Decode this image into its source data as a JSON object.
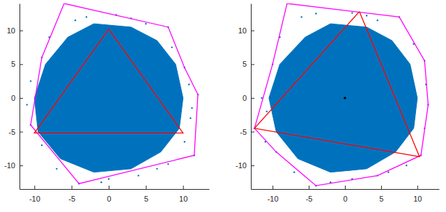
{
  "chart_data": [
    {
      "type": "scatter",
      "xlim": [
        -12,
        13.5
      ],
      "ylim": [
        -13.5,
        14
      ],
      "xticks": [
        -10,
        -5,
        0,
        5,
        10
      ],
      "yticks": [
        -10,
        -5,
        0,
        5,
        10
      ],
      "series": [
        {
          "type": "polygon",
          "color": "#0072bd",
          "x": [
            -2,
            3,
            6.5,
            9,
            10,
            9.5,
            7,
            3,
            -2,
            -6.5,
            -9.5,
            -10,
            -8.5,
            -5.5
          ],
          "values": [
            11,
            10.5,
            8.5,
            5,
            0,
            -4.5,
            -8,
            -10.5,
            -11,
            -9,
            -5,
            0,
            5,
            9
          ]
        },
        {
          "type": "scatter",
          "color": "#0072bd",
          "marker": "dot",
          "x": [
            -6,
            8,
            10.2,
            12,
            11.5,
            -4,
            -10.5,
            -9,
            -3,
            1,
            5,
            8.5,
            10.8,
            11,
            10.2,
            8,
            4,
            0,
            -7,
            -9,
            -11,
            -10.5,
            -8,
            -4.5,
            3,
            -1,
            6.5,
            11.2
          ],
          "values": [
            14,
            10.5,
            4.5,
            0.5,
            -8.5,
            -12.7,
            -4,
            6,
            12,
            12.3,
            11,
            7.5,
            2,
            -3,
            -6.5,
            -9.8,
            -11.5,
            -12,
            -10.5,
            -7,
            -1,
            2.5,
            9,
            11.5,
            11.8,
            -12.5,
            -10.5,
            -1.5
          ]
        },
        {
          "type": "line",
          "color": "#ff00ff",
          "x": [
            -6,
            8,
            10.2,
            12,
            11.5,
            -4,
            -10.5,
            -9,
            -6
          ],
          "values": [
            14,
            10.5,
            4.5,
            0.5,
            -8.5,
            -12.7,
            -4,
            6,
            14
          ]
        },
        {
          "type": "line",
          "color": "#ff0000",
          "x": [
            0,
            10,
            -10,
            0
          ],
          "values": [
            10.2,
            -5.2,
            -5.2,
            10.2
          ]
        }
      ]
    },
    {
      "type": "scatter",
      "xlim": [
        -13,
        13
      ],
      "ylim": [
        -13.5,
        14
      ],
      "xticks": [
        -10,
        -5,
        0,
        5,
        10
      ],
      "yticks": [
        -10,
        -5,
        0,
        5,
        10
      ],
      "series": [
        {
          "type": "polygon",
          "color": "#0072bd",
          "x": [
            -2,
            3,
            6.5,
            9,
            10,
            9.5,
            7,
            3,
            -2,
            -6.5,
            -9.5,
            -10.5,
            -9,
            -5.5
          ],
          "values": [
            11,
            10.5,
            8.5,
            5,
            0,
            -4.5,
            -8,
            -10.5,
            -11,
            -9,
            -5,
            0,
            5,
            9
          ]
        },
        {
          "type": "scatter",
          "color": "#0072bd",
          "marker": "dot",
          "x": [
            -8,
            7.5,
            11,
            11.5,
            10.5,
            4.5,
            -4,
            -9.5,
            -12.5,
            -10,
            -4,
            1,
            4.5,
            9.5,
            11.2,
            11,
            8.5,
            1,
            -2,
            -7,
            -11,
            -11.5,
            -9,
            -6,
            3,
            6,
            -10.8
          ],
          "values": [
            14,
            12,
            5.5,
            -1,
            -8.5,
            -11.5,
            -13,
            -8,
            -4.5,
            5,
            12.5,
            12.6,
            11.5,
            8,
            2,
            -4.5,
            -10,
            -12,
            -12.5,
            -11,
            -6.5,
            0,
            9,
            12,
            12.2,
            -11,
            -2
          ]
        },
        {
          "type": "line",
          "color": "#ff00ff",
          "x": [
            -8,
            7.5,
            11,
            11.5,
            10.5,
            4.5,
            -4,
            -9.5,
            -12.5,
            -10,
            -8
          ],
          "values": [
            14,
            12,
            5.5,
            -1,
            -8.5,
            -11.5,
            -13,
            -8,
            -4.5,
            5,
            14
          ]
        },
        {
          "type": "line",
          "color": "#ff0000",
          "x": [
            2,
            10.3,
            -12.5,
            2
          ],
          "values": [
            12.8,
            -8.7,
            -4.5,
            12.8
          ]
        },
        {
          "type": "scatter",
          "color": "#000000",
          "marker": "dot",
          "x": [
            0
          ],
          "values": [
            0
          ]
        }
      ]
    }
  ]
}
